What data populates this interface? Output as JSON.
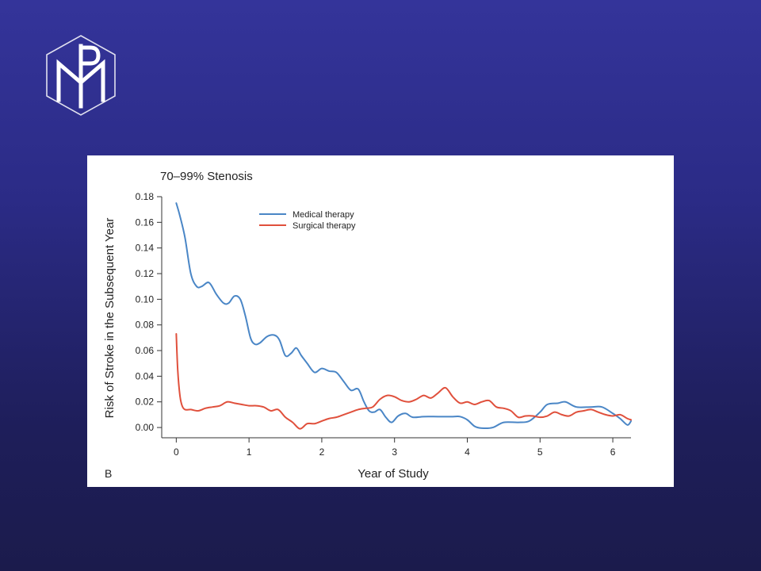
{
  "logo": {
    "name": "pm-monogram-logo",
    "color": "#ffffff"
  },
  "chart_data": {
    "type": "line",
    "title": "70–99% Stenosis",
    "panel_label": "B",
    "xlabel": "Year of Study",
    "ylabel": "Risk of Stroke in the Subsequent Year",
    "xlim": [
      -0.2,
      6.25
    ],
    "ylim": [
      -0.008,
      0.18
    ],
    "xticks": [
      0,
      1,
      2,
      3,
      4,
      5,
      6
    ],
    "yticks": [
      0.0,
      0.02,
      0.04,
      0.06,
      0.08,
      0.1,
      0.12,
      0.14,
      0.16,
      0.18
    ],
    "ytick_labels": [
      "0.00",
      "0.02",
      "0.04",
      "0.06",
      "0.08",
      "0.10",
      "0.12",
      "0.14",
      "0.16",
      "0.18"
    ],
    "grid": false,
    "legend_position": "top-center",
    "series": [
      {
        "name": "Medical therapy",
        "color": "#4a86c6",
        "x": [
          0,
          0.05,
          0.12,
          0.2,
          0.28,
          0.35,
          0.45,
          0.55,
          0.65,
          0.72,
          0.8,
          0.88,
          0.95,
          1.02,
          1.08,
          1.15,
          1.25,
          1.35,
          1.42,
          1.5,
          1.58,
          1.65,
          1.72,
          1.8,
          1.9,
          2.0,
          2.1,
          2.2,
          2.3,
          2.4,
          2.5,
          2.58,
          2.65,
          2.72,
          2.8,
          2.88,
          2.96,
          3.05,
          3.15,
          3.25,
          3.4,
          3.6,
          3.8,
          3.9,
          4.0,
          4.1,
          4.2,
          4.35,
          4.5,
          4.7,
          4.85,
          5.0,
          5.1,
          5.25,
          5.35,
          5.5,
          5.7,
          5.85,
          6.0,
          6.1,
          6.2,
          6.25
        ],
        "y": [
          0.175,
          0.165,
          0.148,
          0.12,
          0.11,
          0.11,
          0.113,
          0.104,
          0.097,
          0.097,
          0.1025,
          0.1,
          0.087,
          0.07,
          0.065,
          0.066,
          0.071,
          0.072,
          0.068,
          0.056,
          0.058,
          0.062,
          0.056,
          0.05,
          0.043,
          0.046,
          0.044,
          0.043,
          0.036,
          0.029,
          0.03,
          0.02,
          0.013,
          0.012,
          0.014,
          0.008,
          0.004,
          0.009,
          0.011,
          0.008,
          0.0085,
          0.0085,
          0.0085,
          0.0085,
          0.006,
          0.001,
          -0.0005,
          0.0,
          0.004,
          0.004,
          0.005,
          0.012,
          0.018,
          0.019,
          0.02,
          0.016,
          0.016,
          0.016,
          0.011,
          0.007,
          0.002,
          0.005
        ]
      },
      {
        "name": "Surgical therapy",
        "color": "#e0503c",
        "x": [
          0,
          0.02,
          0.05,
          0.08,
          0.12,
          0.2,
          0.3,
          0.4,
          0.5,
          0.6,
          0.7,
          0.8,
          0.9,
          1.0,
          1.1,
          1.2,
          1.3,
          1.4,
          1.5,
          1.6,
          1.7,
          1.8,
          1.9,
          2.0,
          2.1,
          2.2,
          2.3,
          2.4,
          2.5,
          2.6,
          2.7,
          2.8,
          2.9,
          3.0,
          3.1,
          3.2,
          3.3,
          3.4,
          3.5,
          3.6,
          3.7,
          3.8,
          3.9,
          4.0,
          4.1,
          4.2,
          4.3,
          4.4,
          4.5,
          4.6,
          4.7,
          4.8,
          4.9,
          5.0,
          5.1,
          5.2,
          5.3,
          5.4,
          5.5,
          5.6,
          5.7,
          5.8,
          5.9,
          6.0,
          6.1,
          6.2,
          6.25
        ],
        "y": [
          0.073,
          0.045,
          0.025,
          0.017,
          0.014,
          0.014,
          0.013,
          0.015,
          0.016,
          0.017,
          0.02,
          0.019,
          0.018,
          0.017,
          0.017,
          0.016,
          0.013,
          0.014,
          0.008,
          0.004,
          -0.001,
          0.003,
          0.003,
          0.005,
          0.007,
          0.008,
          0.01,
          0.012,
          0.014,
          0.015,
          0.016,
          0.022,
          0.025,
          0.024,
          0.021,
          0.02,
          0.022,
          0.025,
          0.023,
          0.027,
          0.031,
          0.024,
          0.019,
          0.02,
          0.018,
          0.02,
          0.021,
          0.016,
          0.015,
          0.013,
          0.008,
          0.009,
          0.009,
          0.008,
          0.009,
          0.012,
          0.01,
          0.009,
          0.012,
          0.013,
          0.014,
          0.012,
          0.01,
          0.009,
          0.01,
          0.007,
          0.006
        ]
      }
    ]
  }
}
